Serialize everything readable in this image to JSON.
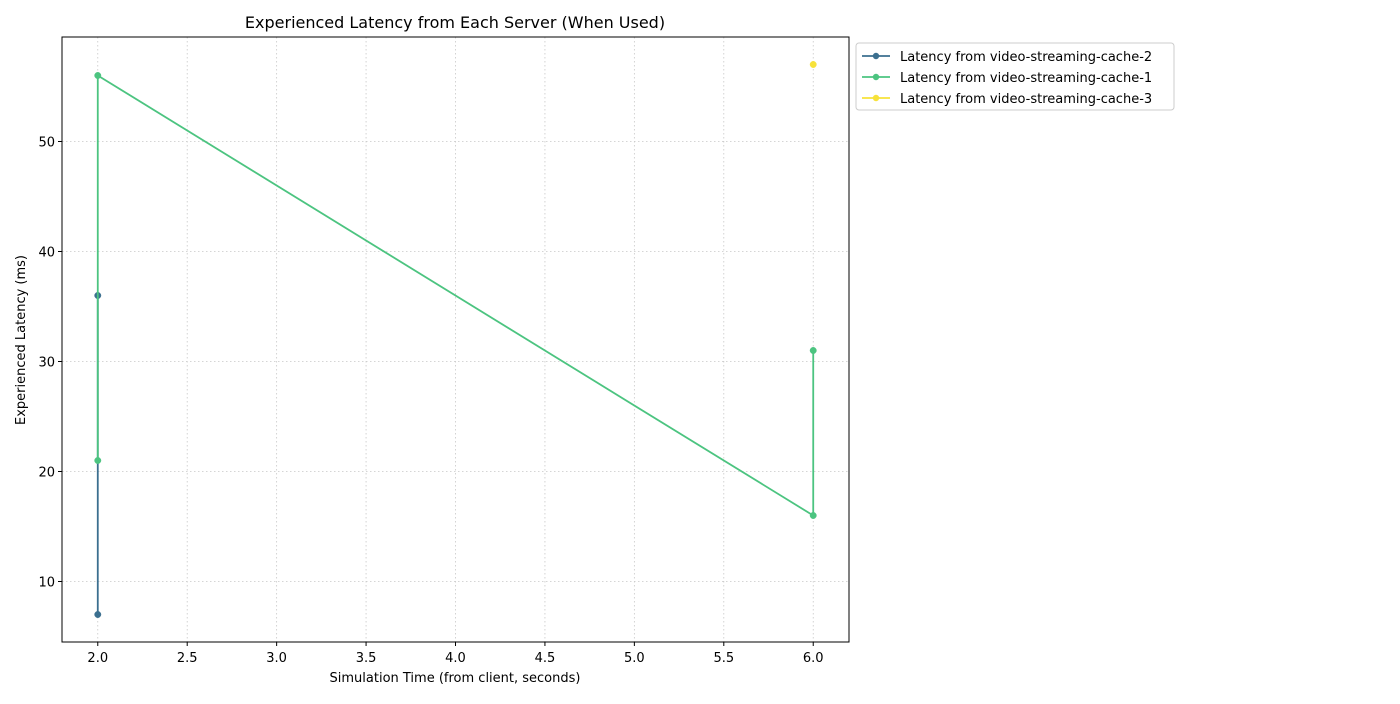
{
  "chart_data": {
    "type": "line",
    "title": "Experienced Latency from Each Server (When Used)",
    "xlabel": "Simulation Time (from client, seconds)",
    "ylabel": "Experienced Latency (ms)",
    "xlim": [
      1.8,
      6.2
    ],
    "ylim": [
      4.5,
      59.5
    ],
    "xticks": [
      "2.0",
      "2.5",
      "3.0",
      "3.5",
      "4.0",
      "4.5",
      "5.0",
      "5.5",
      "6.0"
    ],
    "xtick_values": [
      2.0,
      2.5,
      3.0,
      3.5,
      4.0,
      4.5,
      5.0,
      5.5,
      6.0
    ],
    "yticks": [
      "10",
      "20",
      "30",
      "40",
      "50"
    ],
    "ytick_values": [
      10,
      20,
      30,
      40,
      50
    ],
    "grid": true,
    "legend_position": "outside-top-right",
    "series": [
      {
        "name": "Latency from video-streaming-cache-2",
        "color": "#3b6f8f",
        "points": [
          [
            2.0,
            7
          ],
          [
            2.0,
            36
          ]
        ]
      },
      {
        "name": "Latency from video-streaming-cache-1",
        "color": "#4cc480",
        "points": [
          [
            2.0,
            21
          ],
          [
            2.0,
            56
          ],
          [
            6.0,
            16
          ],
          [
            6.0,
            31
          ]
        ]
      },
      {
        "name": "Latency from video-streaming-cache-3",
        "color": "#f7e23a",
        "points": [
          [
            6.0,
            57
          ]
        ]
      }
    ]
  }
}
